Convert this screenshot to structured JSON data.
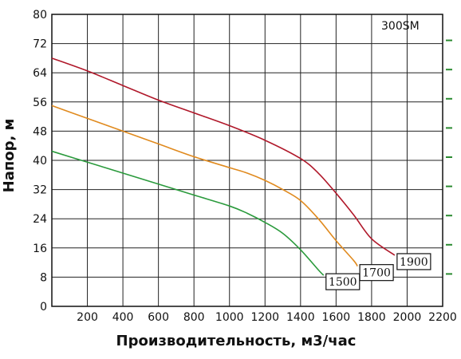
{
  "chart_data": {
    "type": "line",
    "title": "",
    "model_label": "300SM",
    "xlabel": "Производительность, м3/час",
    "ylabel": "Напор, м",
    "xlim": [
      0,
      2200
    ],
    "ylim": [
      0,
      80
    ],
    "x_ticks": [
      200,
      400,
      600,
      800,
      1000,
      1200,
      1400,
      1600,
      1800,
      2000,
      2200
    ],
    "y_ticks": [
      0,
      8,
      16,
      24,
      32,
      40,
      48,
      56,
      64,
      72,
      80
    ],
    "grid": true,
    "series": [
      {
        "name": "1900",
        "color": "#b0182a",
        "points": [
          [
            0,
            68
          ],
          [
            200,
            64.5
          ],
          [
            400,
            60.5
          ],
          [
            600,
            56.5
          ],
          [
            800,
            53
          ],
          [
            1000,
            49.5
          ],
          [
            1200,
            45.5
          ],
          [
            1400,
            40.5
          ],
          [
            1500,
            36.5
          ],
          [
            1600,
            31
          ],
          [
            1700,
            25
          ],
          [
            1800,
            18.5
          ],
          [
            1930,
            14
          ]
        ]
      },
      {
        "name": "1700",
        "color": "#e08a1e",
        "points": [
          [
            0,
            55
          ],
          [
            200,
            51.5
          ],
          [
            400,
            48
          ],
          [
            600,
            44.5
          ],
          [
            800,
            41
          ],
          [
            1000,
            38
          ],
          [
            1100,
            36.5
          ],
          [
            1200,
            34.5
          ],
          [
            1300,
            32
          ],
          [
            1400,
            29
          ],
          [
            1500,
            24
          ],
          [
            1600,
            18
          ],
          [
            1700,
            12.5
          ],
          [
            1720,
            11
          ]
        ]
      },
      {
        "name": "1500",
        "color": "#2a9a3c",
        "points": [
          [
            0,
            42.5
          ],
          [
            200,
            39.5
          ],
          [
            400,
            36.5
          ],
          [
            600,
            33.5
          ],
          [
            800,
            30.5
          ],
          [
            1000,
            27.5
          ],
          [
            1100,
            25.5
          ],
          [
            1200,
            23
          ],
          [
            1300,
            20
          ],
          [
            1400,
            15.5
          ],
          [
            1500,
            10
          ],
          [
            1530,
            8.5
          ]
        ]
      }
    ],
    "right_markers": [
      8,
      16,
      24,
      32,
      40,
      48,
      56,
      64,
      72
    ],
    "right_marker_color": "#2a8a30"
  }
}
